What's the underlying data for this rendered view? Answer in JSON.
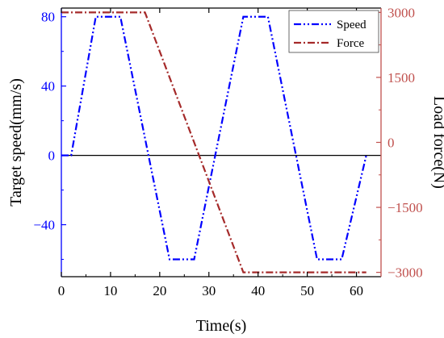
{
  "chart_data": {
    "type": "line",
    "xlabel": "Time(s)",
    "ylabel": "Target speed(mm/s)",
    "y2label": "Load force(N)",
    "xlim": [
      0,
      65
    ],
    "ylim": [
      -70,
      85
    ],
    "y2lim": [
      -3100,
      3100
    ],
    "xticks": [
      0,
      10,
      20,
      30,
      40,
      50,
      60
    ],
    "yticks": [
      -40,
      0,
      40,
      80
    ],
    "y2ticks": [
      -3000,
      -1500,
      0,
      1500,
      3000
    ],
    "legend_position": "top-right",
    "series": [
      {
        "name": "Speed",
        "axis": "left",
        "style": "dash-dot-dot",
        "color": "#0000ff",
        "points": [
          [
            0,
            0
          ],
          [
            2,
            0
          ],
          [
            7,
            80
          ],
          [
            12,
            80
          ],
          [
            22,
            -60
          ],
          [
            27,
            -60
          ],
          [
            37,
            80
          ],
          [
            42,
            80
          ],
          [
            52,
            -60
          ],
          [
            57,
            -60
          ],
          [
            62,
            0
          ]
        ]
      },
      {
        "name": "Force",
        "axis": "right",
        "style": "dash-dot",
        "color": "#a52a2a",
        "points": [
          [
            0,
            3000
          ],
          [
            17,
            3000
          ],
          [
            37,
            -3000
          ],
          [
            62,
            -3000
          ]
        ]
      }
    ],
    "zero_line": 0,
    "colors": {
      "left_axis": "#0000ff",
      "right_axis": "#c0504d",
      "frame": "#000000"
    }
  }
}
